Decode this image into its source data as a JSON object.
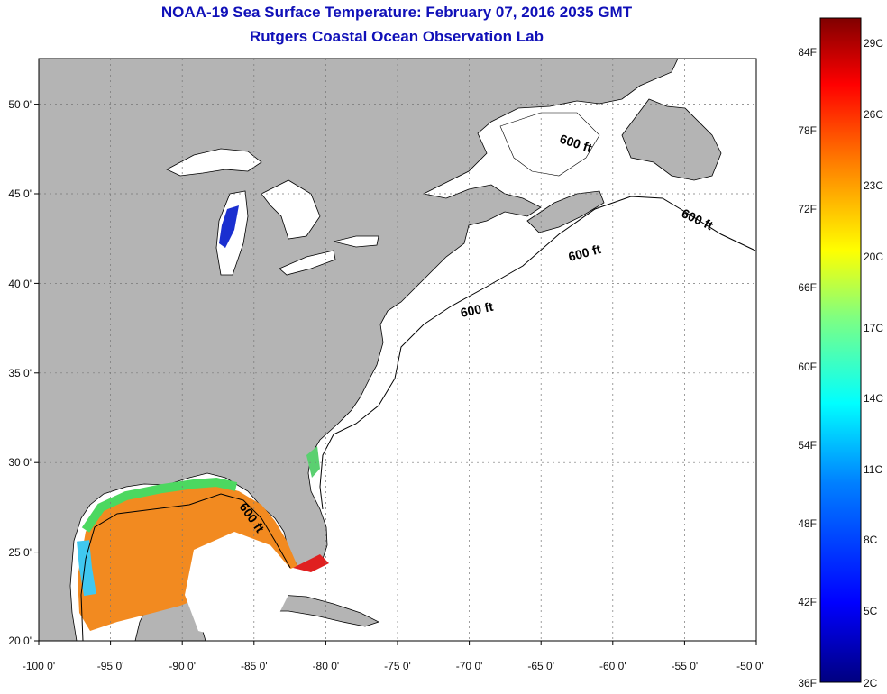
{
  "title": "NOAA-19 Sea Surface Temperature:  February 07, 2016 2035 GMT",
  "subtitle": "Rutgers Coastal Ocean Observation Lab",
  "map": {
    "lon_range": [
      -100,
      -50
    ],
    "lat_range": [
      20,
      52.5
    ],
    "x_ticks": [
      "-100 0'",
      "-95 0'",
      "-90 0'",
      "-85 0'",
      "-80 0'",
      "-75 0'",
      "-70 0'",
      "-65 0'",
      "-60 0'",
      "-55 0'",
      "-50 0'"
    ],
    "y_ticks": [
      "20 0'",
      "25 0'",
      "30 0'",
      "35 0'",
      "40 0'",
      "45 0'",
      "50 0'"
    ],
    "contour_label": "600 ft",
    "grid": "dotted",
    "land_color": "#b4b4b4",
    "water_color": "#ffffff"
  },
  "colorbar": {
    "fahrenheit_labels": [
      "84F",
      "78F",
      "72F",
      "66F",
      "60F",
      "54F",
      "48F",
      "42F",
      "36F"
    ],
    "celsius_labels": [
      "29C",
      "26C",
      "23C",
      "20C",
      "17C",
      "14C",
      "11C",
      "8C",
      "5C",
      "2C"
    ],
    "colors": [
      "#800000",
      "#ff0000",
      "#ff8000",
      "#ffff00",
      "#80ff80",
      "#00ffff",
      "#0080ff",
      "#0000ff",
      "#000080"
    ]
  }
}
